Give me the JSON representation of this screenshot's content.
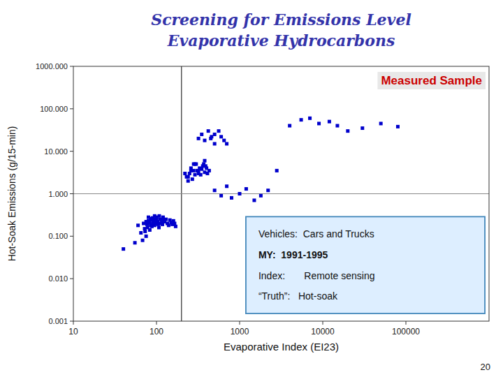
{
  "chart_data": {
    "type": "scatter",
    "title": "Screening for Emissions Level",
    "subtitle": "Evaporative Hydrocarbons",
    "x_label": "Evaporative Index (EI23)",
    "y_label": "Hot-Soak Emissions (g/15-min)",
    "annotations": [
      "Measured Sample",
      "Vehicles:  Cars and Trucks",
      "MY:  1991-1995",
      "Index:       Remote sensing",
      "“Truth”:   Hot-soak",
      "20"
    ],
    "log": true,
    "grid": false,
    "marker": "square",
    "color": "#0000CC",
    "xlim": [
      10,
      1000000
    ],
    "ylim": [
      0.001,
      1000.0
    ],
    "xticks": [
      10,
      100,
      1000,
      10000,
      100000
    ],
    "yticks": [
      0.001,
      {
        "value": 0.01,
        "label": "0.010"
      },
      {
        "value": 0.1,
        "label": "0.100"
      },
      {
        "value": 1,
        "label": "1.000"
      },
      {
        "value": 10,
        "label": "10.000"
      },
      {
        "value": 100,
        "label": "100.000"
      },
      {
        "value": 1000,
        "label": "1000.000"
      }
    ],
    "vline_x": 200,
    "hline_y": 1.0,
    "x": [
      40,
      55,
      60,
      65,
      68,
      70,
      72,
      73,
      75,
      75,
      77,
      78,
      80,
      80,
      82,
      83,
      85,
      85,
      87,
      88,
      90,
      90,
      92,
      93,
      95,
      95,
      97,
      98,
      100,
      100,
      103,
      105,
      107,
      108,
      110,
      112,
      115,
      118,
      120,
      120,
      125,
      130,
      135,
      140,
      145,
      150,
      155,
      160,
      165,
      170,
      220,
      240,
      260,
      280,
      300,
      320,
      340,
      360,
      380,
      400,
      230,
      250,
      270,
      290,
      310,
      330,
      350,
      370,
      390,
      410,
      430,
      240,
      260,
      290,
      320,
      350,
      380,
      420,
      460,
      500,
      280,
      320,
      380,
      450,
      500,
      560,
      600,
      650,
      700,
      500,
      600,
      700,
      800,
      1000,
      1200,
      1500,
      1800,
      2200,
      2800,
      4000,
      5500,
      7000,
      9000,
      12000,
      15000,
      20000,
      30000,
      50000,
      80000
    ],
    "values": [
      0.05,
      0.07,
      0.18,
      0.12,
      0.08,
      0.2,
      0.15,
      0.13,
      0.22,
      0.1,
      0.19,
      0.16,
      0.23,
      0.28,
      0.21,
      0.14,
      0.26,
      0.18,
      0.24,
      0.17,
      0.2,
      0.27,
      0.22,
      0.25,
      0.18,
      0.3,
      0.2,
      0.23,
      0.28,
      0.25,
      0.22,
      0.19,
      0.16,
      0.3,
      0.25,
      0.2,
      0.22,
      0.19,
      0.28,
      0.26,
      0.22,
      0.25,
      0.2,
      0.18,
      0.24,
      0.21,
      0.19,
      0.23,
      0.2,
      0.17,
      3.0,
      2.5,
      4.0,
      3.5,
      5.0,
      3.0,
      2.8,
      4.5,
      3.2,
      4.0,
      2.5,
      3.0,
      2.2,
      2.8,
      3.5,
      4.0,
      3.8,
      5.0,
      4.5,
      3.0,
      3.5,
      2.0,
      3.5,
      5.0,
      20.0,
      25.0,
      18.0,
      30.0,
      22.0,
      15.0,
      5.0,
      3.5,
      6.0,
      20.0,
      25.0,
      30.0,
      22.0,
      18.0,
      15.0,
      1.2,
      0.9,
      1.5,
      0.8,
      1.0,
      1.3,
      0.7,
      0.9,
      1.2,
      3.5,
      40.0,
      55.0,
      60.0,
      45.0,
      50.0,
      40.0,
      30.0,
      35.0,
      45.0,
      38.0
    ]
  }
}
